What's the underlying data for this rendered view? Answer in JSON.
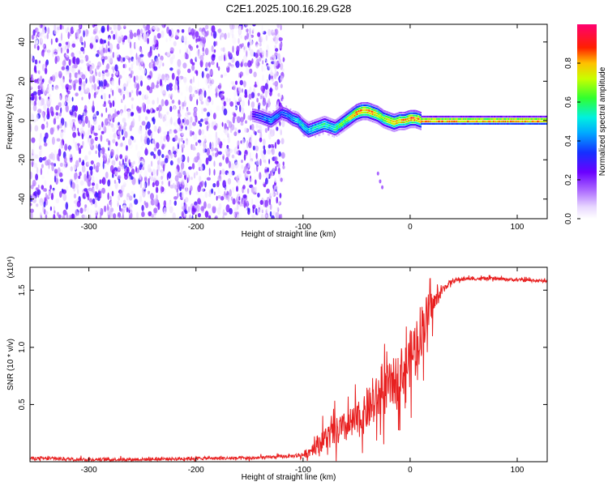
{
  "title": "C2E1.2025.100.16.29.G28",
  "chart_data": [
    {
      "type": "heatmap",
      "title": "C2E1.2025.100.16.29.G28",
      "xlabel": "Height of straight line (km)",
      "ylabel": "Frequency (Hz)",
      "xlim": [
        -355,
        128
      ],
      "ylim": [
        -50,
        49
      ],
      "xticks": [
        -300,
        -200,
        -100,
        0,
        100
      ],
      "yticks": [
        -40,
        -20,
        0,
        20,
        40
      ],
      "colorbar": {
        "label": "Normalized spectral amplitude",
        "range": [
          0,
          1
        ],
        "ticks": [
          0.0,
          0.2,
          0.4,
          0.6,
          0.8
        ],
        "colormap": "rainbow (white-purple-blue-cyan-green-yellow-red-magenta)"
      },
      "centerline": {
        "x": [
          -147,
          -140,
          -135,
          -130,
          -125,
          -120,
          -115,
          -110,
          -105,
          -100,
          -95,
          -90,
          -85,
          -80,
          -75,
          -70,
          -65,
          -60,
          -55,
          -50,
          -45,
          -40,
          -35,
          -30,
          -25,
          -20,
          -15,
          -10,
          -5,
          0,
          5,
          10,
          20,
          40,
          60,
          80,
          100,
          128
        ],
        "y": [
          3,
          2,
          1,
          0,
          2,
          4,
          3,
          1,
          0,
          -3,
          -5,
          -4,
          -3,
          -2,
          -3,
          -4,
          -2,
          0,
          2,
          4,
          5,
          5,
          4,
          3,
          1,
          0,
          -1,
          0,
          0,
          1,
          1,
          0,
          0,
          0,
          0,
          0,
          0,
          0
        ],
        "strength": [
          0.3,
          0.4,
          0.45,
          0.5,
          0.45,
          0.4,
          0.45,
          0.5,
          0.55,
          0.6,
          0.55,
          0.6,
          0.6,
          0.65,
          0.6,
          0.65,
          0.7,
          0.75,
          0.85,
          0.95,
          0.95,
          0.95,
          0.9,
          0.85,
          0.8,
          0.85,
          0.9,
          0.9,
          0.9,
          0.95,
          0.95,
          0.95,
          0.95,
          0.95,
          0.95,
          0.95,
          0.95,
          0.95
        ]
      },
      "noise_region_x": [
        -355,
        -118
      ]
    },
    {
      "type": "line",
      "xlabel": "Height of straight line (km)",
      "ylabel": "SNR (10 * v/v)",
      "y_multiplier": "(x10⁴)",
      "xlim": [
        -355,
        128
      ],
      "ylim": [
        0.0,
        1.7
      ],
      "xticks": [
        -300,
        -200,
        -100,
        0,
        100
      ],
      "yticks": [
        0.5,
        1.0,
        1.5
      ],
      "series": [
        {
          "color": "#e82020",
          "x": [
            -355,
            -300,
            -250,
            -200,
            -150,
            -130,
            -110,
            -100,
            -95,
            -90,
            -80,
            -70,
            -60,
            -50,
            -45,
            -40,
            -35,
            -30,
            -20,
            -10,
            -5,
            0,
            5,
            10,
            15,
            20,
            25,
            30,
            35,
            40,
            50,
            60,
            80,
            100,
            128
          ],
          "y": [
            0.03,
            0.02,
            0.02,
            0.03,
            0.03,
            0.04,
            0.05,
            0.06,
            0.08,
            0.13,
            0.2,
            0.25,
            0.3,
            0.35,
            0.38,
            0.45,
            0.5,
            0.55,
            0.65,
            0.75,
            0.8,
            0.9,
            1.0,
            1.15,
            1.25,
            1.35,
            1.42,
            1.5,
            1.55,
            1.58,
            1.6,
            1.6,
            1.6,
            1.59,
            1.58
          ],
          "noise": [
            0.02,
            0.02,
            0.02,
            0.02,
            0.02,
            0.02,
            0.02,
            0.04,
            0.06,
            0.1,
            0.15,
            0.18,
            0.2,
            0.22,
            0.22,
            0.25,
            0.28,
            0.3,
            0.3,
            0.3,
            0.3,
            0.35,
            0.4,
            0.35,
            0.3,
            0.2,
            0.1,
            0.05,
            0.04,
            0.03,
            0.02,
            0.02,
            0.02,
            0.02,
            0.02
          ]
        }
      ]
    }
  ]
}
